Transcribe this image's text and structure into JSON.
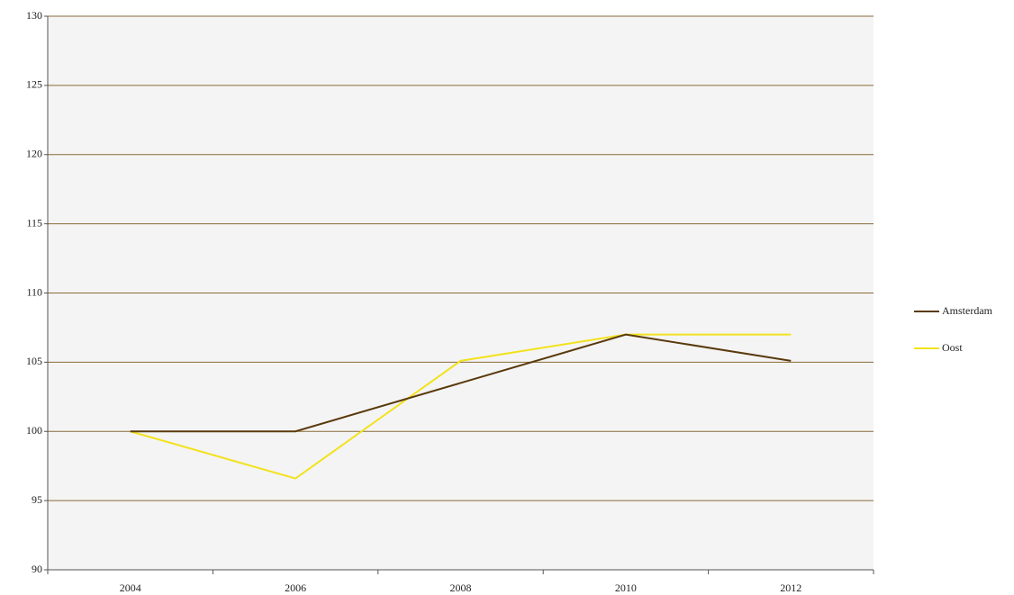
{
  "chart_data": {
    "type": "line",
    "categories": [
      "2004",
      "2006",
      "2008",
      "2010",
      "2012"
    ],
    "series": [
      {
        "name": "Amsterdam",
        "color": "#5a3a0c",
        "values": [
          100,
          100,
          103.5,
          107,
          105.1
        ]
      },
      {
        "name": "Oost",
        "color": "#f2e21c",
        "values": [
          100,
          96.6,
          105.1,
          107,
          107
        ]
      }
    ],
    "ylim": [
      90,
      130
    ],
    "yticks": [
      90,
      95,
      100,
      105,
      110,
      115,
      120,
      125,
      130
    ],
    "grid": true,
    "legend": "right"
  }
}
